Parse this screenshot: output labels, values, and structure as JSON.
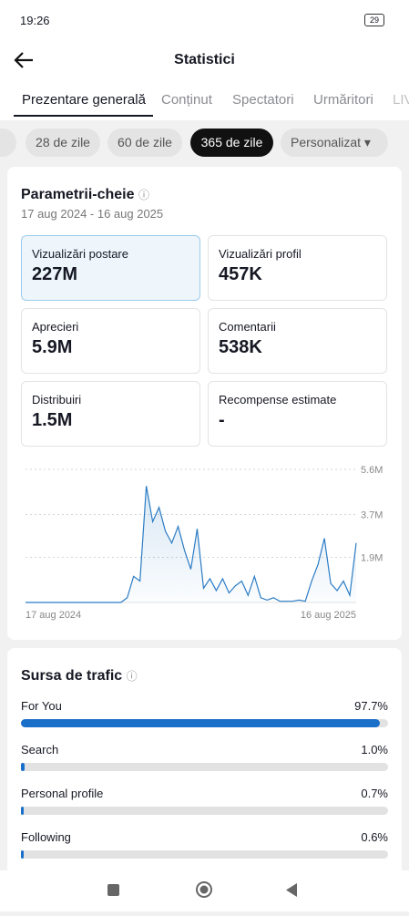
{
  "status_bar": {
    "time": "19:26",
    "battery": "29"
  },
  "header": {
    "title": "Statistici"
  },
  "tabs": [
    "Prezentare generală",
    "Conținut",
    "Spectatori",
    "Urmăritori",
    "LIVE"
  ],
  "periods": [
    "28 de zile",
    "60 de zile",
    "365 de zile",
    "Personalizat"
  ],
  "key_metrics": {
    "title": "Parametrii-cheie",
    "date_range": "17 aug 2024 - 16 aug 2025",
    "cards": [
      {
        "label": "Vizualizări postare",
        "value": "227M"
      },
      {
        "label": "Vizualizări profil",
        "value": "457K"
      },
      {
        "label": "Aprecieri",
        "value": "5.9M"
      },
      {
        "label": "Comentarii",
        "value": "538K"
      },
      {
        "label": "Distribuiri",
        "value": "1.5M"
      },
      {
        "label": "Recompense estimate",
        "value": "-"
      }
    ]
  },
  "chart_data": {
    "type": "line",
    "color": "#2b7cc4",
    "categories": [
      "17 aug 2024",
      null,
      null,
      null,
      null,
      null,
      null,
      null,
      null,
      null,
      null,
      null,
      null,
      null,
      null,
      null,
      null,
      null,
      null,
      null,
      null,
      null,
      null,
      null,
      null,
      null,
      null,
      null,
      null,
      null,
      null,
      null,
      null,
      null,
      null,
      null,
      null,
      null,
      null,
      null,
      null,
      null,
      null,
      null,
      null,
      null,
      null,
      null,
      null,
      null,
      null,
      null,
      "16 aug 2025"
    ],
    "values": [
      0,
      0,
      0,
      0,
      0,
      0,
      0,
      0,
      0,
      0,
      0,
      0,
      0,
      0,
      0,
      0,
      200000,
      1100000,
      900000,
      4900000,
      3400000,
      4000000,
      3000000,
      2500000,
      3200000,
      2200000,
      1400000,
      3100000,
      600000,
      1000000,
      500000,
      1000000,
      400000,
      700000,
      900000,
      300000,
      1100000,
      200000,
      100000,
      200000,
      50000,
      50000,
      50000,
      100000,
      50000,
      900000,
      1600000,
      2700000,
      800000,
      500000,
      900000,
      300000,
      2500000
    ],
    "ylim": [
      0,
      5600000
    ],
    "yticks": [
      {
        "value": 1900000,
        "label": "1.9M"
      },
      {
        "value": 3700000,
        "label": "3.7M"
      },
      {
        "value": 5600000,
        "label": "5.6M"
      }
    ],
    "grid": true
  },
  "traffic": {
    "title": "Sursa de trafic",
    "sources": [
      "For You",
      "Search",
      "Personal profile",
      "Following"
    ],
    "values": [
      97.7,
      1.0,
      0.7,
      0.6
    ],
    "value_labels": [
      "97.7%",
      "1.0%",
      "0.7%",
      "0.6%"
    ],
    "xlim": [
      0,
      100
    ],
    "color": "#1a6fc9"
  }
}
